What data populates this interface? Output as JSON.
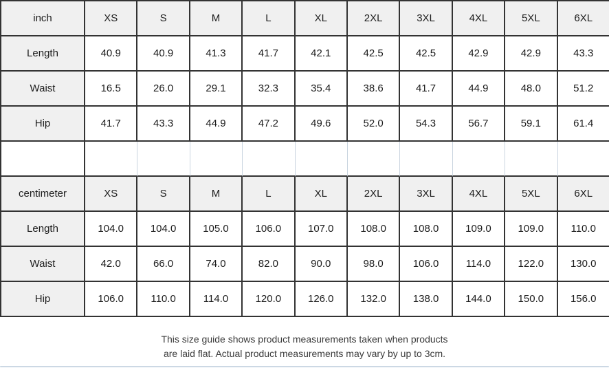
{
  "size_chart": {
    "sections": [
      {
        "unit": "inch",
        "sizes": [
          "XS",
          "S",
          "M",
          "L",
          "XL",
          "2XL",
          "3XL",
          "4XL",
          "5XL",
          "6XL"
        ],
        "rows": [
          {
            "label": "Length",
            "values": [
              "40.9",
              "40.9",
              "41.3",
              "41.7",
              "42.1",
              "42.5",
              "42.5",
              "42.9",
              "42.9",
              "43.3"
            ]
          },
          {
            "label": "Waist",
            "values": [
              "16.5",
              "26.0",
              "29.1",
              "32.3",
              "35.4",
              "38.6",
              "41.7",
              "44.9",
              "48.0",
              "51.2"
            ]
          },
          {
            "label": "Hip",
            "values": [
              "41.7",
              "43.3",
              "44.9",
              "47.2",
              "49.6",
              "52.0",
              "54.3",
              "56.7",
              "59.1",
              "61.4"
            ]
          }
        ]
      },
      {
        "unit": "centimeter",
        "sizes": [
          "XS",
          "S",
          "M",
          "L",
          "XL",
          "2XL",
          "3XL",
          "4XL",
          "5XL",
          "6XL"
        ],
        "rows": [
          {
            "label": "Length",
            "values": [
              "104.0",
              "104.0",
              "105.0",
              "106.0",
              "107.0",
              "108.0",
              "108.0",
              "109.0",
              "109.0",
              "110.0"
            ]
          },
          {
            "label": "Waist",
            "values": [
              "42.0",
              "66.0",
              "74.0",
              "82.0",
              "90.0",
              "98.0",
              "106.0",
              "114.0",
              "122.0",
              "130.0"
            ]
          },
          {
            "label": "Hip",
            "values": [
              "106.0",
              "110.0",
              "114.0",
              "120.0",
              "126.0",
              "132.0",
              "138.0",
              "144.0",
              "150.0",
              "156.0"
            ]
          }
        ]
      }
    ]
  },
  "footer": {
    "line1": "This size guide shows product measurements taken when products",
    "line2": "are laid flat. Actual product measurements may vary by up to 3cm."
  },
  "colors": {
    "header_cell_bg": "#f0f0f0",
    "grid_border_dark": "#333333",
    "spacer_border_light": "#c9d4df",
    "bottom_divider_blue": "#ccd8e4",
    "text": "#1c1c1c"
  }
}
